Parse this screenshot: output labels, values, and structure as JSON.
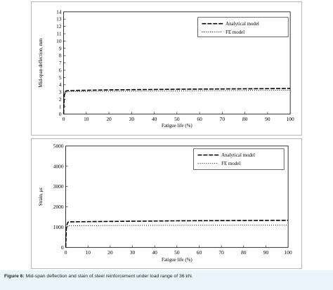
{
  "chart_data": [
    {
      "type": "line",
      "title": "",
      "xlabel": "Fatigue life (%)",
      "ylabel": "Mid-span deflection, mm",
      "xlim": [
        0,
        100
      ],
      "ylim": [
        0,
        14
      ],
      "xticks": [
        "0",
        "10",
        "20",
        "30",
        "40",
        "50",
        "60",
        "70",
        "80",
        "90",
        "100"
      ],
      "yticks": [
        "0",
        "1",
        "2",
        "3",
        "4",
        "5",
        "6",
        "7",
        "8",
        "9",
        "10",
        "11",
        "12",
        "13",
        "14"
      ],
      "legend_position": "top-right",
      "series": [
        {
          "name": "Analytical model",
          "style": "dashed",
          "x": [
            0,
            0.3,
            1,
            2,
            10,
            20,
            30,
            40,
            50,
            60,
            70,
            80,
            90,
            100
          ],
          "y": [
            0,
            2.6,
            3.15,
            3.2,
            3.25,
            3.3,
            3.33,
            3.36,
            3.39,
            3.41,
            3.43,
            3.45,
            3.47,
            3.5
          ]
        },
        {
          "name": "FE model",
          "style": "dotted",
          "x": [
            0,
            0.3,
            1,
            2,
            10,
            20,
            30,
            40,
            50,
            60,
            70,
            80,
            90,
            100
          ],
          "y": [
            0,
            2.5,
            3.0,
            3.05,
            3.08,
            3.1,
            3.12,
            3.14,
            3.16,
            3.18,
            3.2,
            3.22,
            3.24,
            3.26
          ]
        }
      ]
    },
    {
      "type": "line",
      "title": "",
      "xlabel": "Fatigue life (%)",
      "ylabel": "Strain, με",
      "xlim": [
        0,
        100
      ],
      "ylim": [
        0,
        5000
      ],
      "xticks": [
        "0",
        "10",
        "20",
        "30",
        "40",
        "50",
        "60",
        "70",
        "80",
        "90",
        "100"
      ],
      "yticks": [
        "0",
        "1000",
        "2000",
        "3000",
        "4000",
        "5000"
      ],
      "legend_position": "top-right",
      "series": [
        {
          "name": "Analytical model",
          "style": "dashed",
          "x": [
            0,
            0.3,
            1,
            2,
            10,
            20,
            30,
            40,
            50,
            60,
            70,
            80,
            90,
            100
          ],
          "y": [
            0,
            1050,
            1240,
            1260,
            1270,
            1280,
            1290,
            1300,
            1310,
            1315,
            1320,
            1325,
            1330,
            1335
          ]
        },
        {
          "name": "FE model",
          "style": "dotted",
          "x": [
            0,
            0.3,
            1,
            2,
            10,
            20,
            30,
            40,
            50,
            60,
            70,
            80,
            90,
            100
          ],
          "y": [
            0,
            900,
            1060,
            1070,
            1075,
            1080,
            1085,
            1088,
            1090,
            1092,
            1094,
            1096,
            1098,
            1100
          ]
        }
      ]
    }
  ],
  "caption": {
    "label": "Figure 6:",
    "text": " Mid-span deflection and stain of steel reinforcement under load range of 36 kN."
  }
}
